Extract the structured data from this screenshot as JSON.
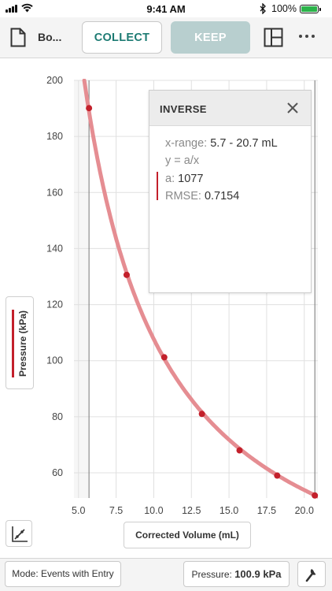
{
  "status_bar": {
    "time": "9:41 AM",
    "battery_percent": "100%",
    "icons": [
      "signal-icon",
      "wifi-icon",
      "bluetooth-icon",
      "battery-icon"
    ],
    "battery_color": "#2bb34a"
  },
  "toolbar": {
    "document_title": "Bo...",
    "collect_label": "COLLECT",
    "keep_label": "KEEP",
    "accent_color": "#1d7b73",
    "icons": [
      "document-icon",
      "layout-icon",
      "more-icon"
    ]
  },
  "fit_panel": {
    "title": "INVERSE",
    "x_range_label": "x-range:",
    "x_range_value": "5.7 - 20.7 mL",
    "equation": "y = a/x",
    "a_label": "a:",
    "a_value": "1077",
    "rmse_label": "RMSE:",
    "rmse_value": "0.7154"
  },
  "chart_data": {
    "type": "scatter",
    "xlabel": "Corrected Volume (mL)",
    "ylabel": "Pressure (kPa)",
    "xlim": [
      4.7,
      20.9
    ],
    "ylim": [
      51,
      200
    ],
    "x_ticks": [
      "5.0",
      "7.5",
      "10.0",
      "12.5",
      "15.0",
      "17.5",
      "20.0"
    ],
    "y_ticks": [
      "60",
      "80",
      "100",
      "120",
      "140",
      "160",
      "180",
      "200"
    ],
    "grid": true,
    "selection_range": [
      5.7,
      20.7
    ],
    "series_color": "#c3202b",
    "fit_color": "#e58d92",
    "series": [
      {
        "x": [
          5.7,
          8.2,
          10.7,
          13.2,
          15.7,
          18.2,
          20.7
        ],
        "y": [
          190.1,
          130.6,
          101.2,
          81.0,
          68.0,
          59.0,
          51.9
        ]
      }
    ],
    "fit": {
      "model": "inverse",
      "a": 1077
    }
  },
  "bottom_bar": {
    "mode_label": "Mode: Events with Entry",
    "sensor_label": "Pressure:",
    "sensor_value": "100.9 kPa",
    "icons": [
      "graph-tools-icon",
      "wrench-icon"
    ]
  }
}
